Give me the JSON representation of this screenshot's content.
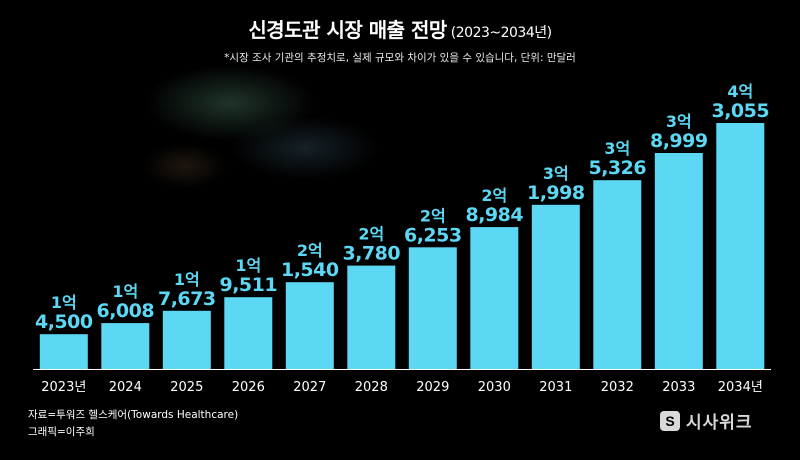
{
  "header": {
    "title": "신경도관 시장 매출 전망",
    "subtitle": "(2023~2034년)",
    "note": "*시장 조사 기관의 추정치로, 실제 규모와 차이가 있을 수 있습니다, 단위: 만달러"
  },
  "footer": {
    "source": "자료=투워즈 헬스케어(Towards Healthcare)",
    "credit": "그래픽=이주희",
    "logo_text": "시사위크",
    "logo_mark": "S"
  },
  "colors": {
    "bar": "#5cd8f4",
    "background": "#000000",
    "text": "#ffffff"
  },
  "chart_data": {
    "type": "bar",
    "categories": [
      "2023년",
      "2024",
      "2025",
      "2026",
      "2027",
      "2028",
      "2029",
      "2030",
      "2031",
      "2032",
      "2033",
      "2034년"
    ],
    "values": [
      14500,
      16008,
      17673,
      19511,
      21540,
      23780,
      26253,
      28984,
      31998,
      35326,
      38999,
      43055
    ],
    "labels_top": [
      "1억",
      "1억",
      "1억",
      "1억",
      "2억",
      "2억",
      "2억",
      "2억",
      "3억",
      "3억",
      "3억",
      "4억"
    ],
    "labels_bottom": [
      "4,500",
      "6,008",
      "7,673",
      "9,511",
      "1,540",
      "3,780",
      "6,253",
      "8,984",
      "1,998",
      "5,326",
      "8,999",
      "3,055"
    ],
    "unit": "만달러",
    "ylim": [
      0,
      43055
    ],
    "grid": false,
    "legend": "none"
  }
}
